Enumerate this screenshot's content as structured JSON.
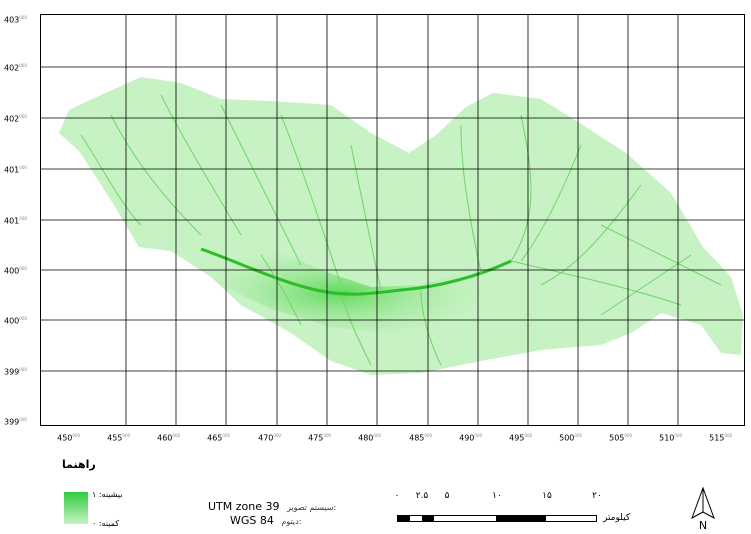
{
  "map": {
    "y_labels": [
      "403",
      "402",
      "402",
      "401",
      "401",
      "400",
      "400",
      "399",
      "399"
    ],
    "x_labels": [
      "450",
      "455",
      "460",
      "465",
      "470",
      "475",
      "480",
      "485",
      "490",
      "495",
      "500",
      "505",
      "510",
      "515"
    ],
    "label_suffix": "000",
    "fill_color_light": "#c7f2c3",
    "fill_color_dark": "#2ecc40",
    "stream_color": "#3fbf3a"
  },
  "legend": {
    "title": "راهنما",
    "high_label": "بیشینه: ۱",
    "low_label": "کمینه: ۰"
  },
  "projection": {
    "system_label": "سیستم تصویر:",
    "system_value": "UTM zone 39",
    "datum_label": "دیتوم:",
    "datum_value": "WGS 84"
  },
  "scale_bar": {
    "ticks": [
      "۰",
      "۲.۵",
      "۵",
      "۱۰",
      "۱۵",
      "۲۰"
    ],
    "unit": "کیلومتر"
  },
  "north_arrow": {
    "letter": "N"
  }
}
